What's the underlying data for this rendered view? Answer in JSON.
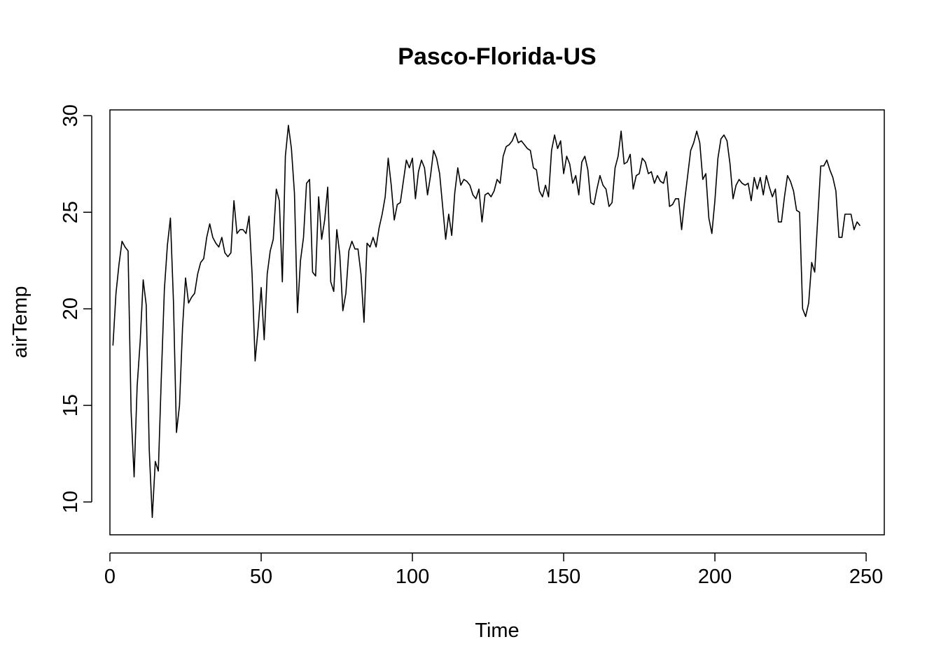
{
  "chart_data": {
    "type": "line",
    "title": "Pasco-Florida-US",
    "xlabel": "Time",
    "ylabel": "airTemp",
    "xlim": [
      0,
      256
    ],
    "ylim": [
      8.3,
      30.3
    ],
    "xticks": [
      0,
      50,
      100,
      150,
      200,
      250
    ],
    "yticks": [
      10,
      15,
      20,
      25,
      30
    ],
    "xtick_labels": [
      "0",
      "50",
      "100",
      "150",
      "200",
      "250"
    ],
    "ytick_labels": [
      "10",
      "15",
      "20",
      "25",
      "30"
    ],
    "grid": false,
    "legend": "none",
    "line_color": "#000000",
    "series": [
      {
        "x": [
          1,
          2,
          3,
          4,
          5,
          6,
          7,
          8,
          9,
          10,
          11,
          12,
          13,
          14,
          15,
          16,
          17,
          18,
          19,
          20,
          21,
          22,
          23,
          24,
          25,
          26,
          27,
          28,
          29,
          30,
          31,
          32,
          33,
          34,
          35,
          36,
          37,
          38,
          39,
          40,
          41,
          42,
          43,
          44,
          45,
          46,
          47,
          48,
          49,
          50,
          51,
          52,
          53,
          54,
          55,
          56,
          57,
          58,
          59,
          60,
          61,
          62,
          63,
          64,
          65,
          66,
          67,
          68,
          69,
          70,
          71,
          72,
          73,
          74,
          75,
          76,
          77,
          78,
          79,
          80,
          81,
          82,
          83,
          84,
          85,
          86,
          87,
          88,
          89,
          90,
          91,
          92,
          93,
          94,
          95,
          96,
          97,
          98,
          99,
          100,
          101,
          102,
          103,
          104,
          105,
          106,
          107,
          108,
          109,
          110,
          111,
          112,
          113,
          114,
          115,
          116,
          117,
          118,
          119,
          120,
          121,
          122,
          123,
          124,
          125,
          126,
          127,
          128,
          129,
          130,
          131,
          132,
          133,
          134,
          135,
          136,
          137,
          138,
          139,
          140,
          141,
          142,
          143,
          144,
          145,
          146,
          147,
          148,
          149,
          150,
          151,
          152,
          153,
          154,
          155,
          156,
          157,
          158,
          159,
          160,
          161,
          162,
          163,
          164,
          165,
          166,
          167,
          168,
          169,
          170,
          171,
          172,
          173,
          174,
          175,
          176,
          177,
          178,
          179,
          180,
          181,
          182,
          183,
          184,
          185,
          186,
          187,
          188,
          189,
          190,
          191,
          192,
          193,
          194,
          195,
          196,
          197,
          198,
          199,
          200,
          201,
          202,
          203,
          204,
          205,
          206,
          207,
          208,
          209,
          210,
          211,
          212,
          213,
          214,
          215,
          216,
          217,
          218,
          219,
          220,
          221,
          222,
          223,
          224,
          225,
          226,
          227,
          228,
          229,
          230,
          231,
          232,
          233,
          234,
          235,
          236,
          237,
          238,
          239,
          240,
          241,
          242,
          243,
          244,
          245,
          246,
          247,
          248
        ],
        "values": [
          18.1,
          20.8,
          22.3,
          23.5,
          23.2,
          23.0,
          14.7,
          11.3,
          16.0,
          18.3,
          21.5,
          20.2,
          12.7,
          9.2,
          12.1,
          11.6,
          16.5,
          21.0,
          23.3,
          24.7,
          20.4,
          13.6,
          15.0,
          19.0,
          21.6,
          20.3,
          20.6,
          20.8,
          21.8,
          22.4,
          22.6,
          23.7,
          24.4,
          23.7,
          23.4,
          23.2,
          23.7,
          22.9,
          22.7,
          22.9,
          25.6,
          23.9,
          24.1,
          24.1,
          23.9,
          24.8,
          21.8,
          17.3,
          19.0,
          21.1,
          18.4,
          21.8,
          23.0,
          23.6,
          26.2,
          25.6,
          21.4,
          27.9,
          29.5,
          28.3,
          26.0,
          19.8,
          22.5,
          23.7,
          26.5,
          26.7,
          21.9,
          21.7,
          25.8,
          23.6,
          24.6,
          26.3,
          21.4,
          20.9,
          24.1,
          22.8,
          19.9,
          20.8,
          23.0,
          23.5,
          23.1,
          23.1,
          21.8,
          19.3,
          23.4,
          23.2,
          23.7,
          23.2,
          24.2,
          24.9,
          25.8,
          27.8,
          26.4,
          24.6,
          25.4,
          25.5,
          26.6,
          27.7,
          27.3,
          27.8,
          25.7,
          27.1,
          27.7,
          27.3,
          25.9,
          26.9,
          28.2,
          27.8,
          27.0,
          25.3,
          23.6,
          24.9,
          23.8,
          26.0,
          27.3,
          26.4,
          26.7,
          26.6,
          26.4,
          25.9,
          25.7,
          26.2,
          24.5,
          25.9,
          26.0,
          25.8,
          26.1,
          26.7,
          26.5,
          27.9,
          28.4,
          28.5,
          28.7,
          29.1,
          28.6,
          28.7,
          28.5,
          28.3,
          28.2,
          27.3,
          27.2,
          26.1,
          25.8,
          26.4,
          25.8,
          28.2,
          29.0,
          28.3,
          28.7,
          27.0,
          27.9,
          27.5,
          26.5,
          26.9,
          25.9,
          27.6,
          27.9,
          27.2,
          25.5,
          25.4,
          26.2,
          26.9,
          26.4,
          26.2,
          25.3,
          25.5,
          27.3,
          27.9,
          29.2,
          27.5,
          27.6,
          28.0,
          26.2,
          26.9,
          27.0,
          27.8,
          27.6,
          27.0,
          27.1,
          26.5,
          26.9,
          26.6,
          26.5,
          27.1,
          25.3,
          25.4,
          25.7,
          25.7,
          24.1,
          25.6,
          26.9,
          28.2,
          28.6,
          29.2,
          28.6,
          26.7,
          27.0,
          24.7,
          23.9,
          25.6,
          27.8,
          28.8,
          29.0,
          28.7,
          27.5,
          25.7,
          26.4,
          26.7,
          26.5,
          26.4,
          26.5,
          25.6,
          26.8,
          26.2,
          26.8,
          25.9,
          26.9,
          26.3,
          25.8,
          26.2,
          24.5,
          24.5,
          25.8,
          26.9,
          26.6,
          26.1,
          25.1,
          25.0,
          20.0,
          19.6,
          20.3,
          22.4,
          21.9,
          24.7,
          27.4,
          27.4,
          27.7,
          27.2,
          26.8,
          26.1,
          23.7,
          23.7,
          24.9,
          24.9,
          24.9,
          24.1,
          24.5,
          24.3
        ]
      }
    ]
  }
}
